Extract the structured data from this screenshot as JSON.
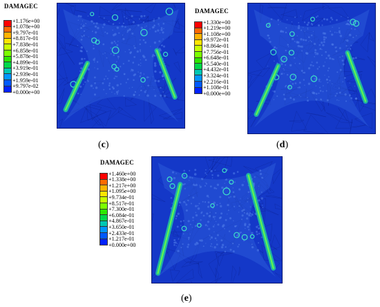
{
  "panels": [
    {
      "id": "c",
      "title": "DAMAGEC",
      "legend": [
        "+1.176e+00",
        "+1.078e+00",
        "+9.797e-01",
        "+8.817e-01",
        "+7.838e-01",
        "+6.858e-01",
        "+5.878e-01",
        "+4.899e-01",
        "+3.919e-01",
        "+2.939e-01",
        "+1.959e-01",
        "+9.797e-02",
        "+0.000e+00"
      ],
      "caption": "c"
    },
    {
      "id": "d",
      "title": "DAMAGEC",
      "legend": [
        "+1.330e+00",
        "+1.219e+00",
        "+1.108e+00",
        "+9.972e-01",
        "+8.864e-01",
        "+7.756e-01",
        "+6.648e-01",
        "+5.540e-01",
        "+4.432e-01",
        "+3.324e-01",
        "+2.216e-01",
        "+1.108e-01",
        "+0.000e+00"
      ],
      "caption": "d"
    },
    {
      "id": "e",
      "title": "DAMAGEC",
      "legend": [
        "+1.460e+00",
        "+1.338e+00",
        "+1.217e+00",
        "+1.095e+00",
        "+9.734e-01",
        "+8.517e-01",
        "+7.300e-01",
        "+6.084e-01",
        "+4.867e-01",
        "+3.650e-01",
        "+2.433e-01",
        "+1.217e-01",
        "+0.000e+00"
      ],
      "caption": "e"
    }
  ],
  "colors": {
    "scale": [
      "#ff0000",
      "#ff6a00",
      "#ffb300",
      "#ffe600",
      "#c8ff00",
      "#7cff00",
      "#2ee800",
      "#00d84a",
      "#00c8b4",
      "#0096ff",
      "#005aff",
      "#0022ff"
    ],
    "field": "#1438c8",
    "field_dark": "#0c2aa8",
    "cells": "#2a5ad8",
    "band": "#22c8a0",
    "band_core": "#66ff44"
  }
}
